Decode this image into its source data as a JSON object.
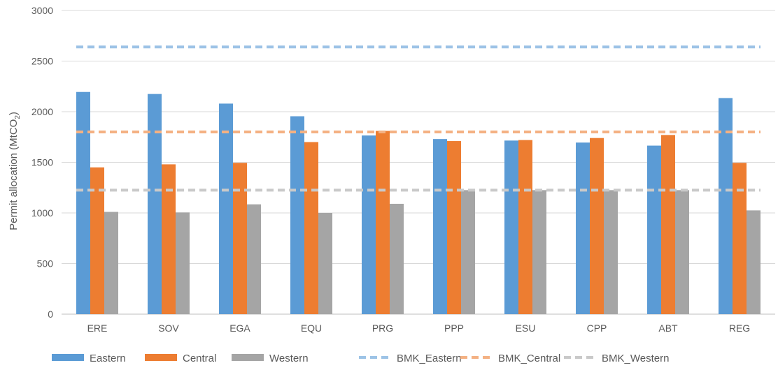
{
  "chart_data": {
    "type": "bar",
    "title": "",
    "xlabel": "",
    "ylabel": "Permit allocation (MtCO",
    "ylabel_sub": "2",
    "ylabel_end": ")",
    "ylim": [
      0,
      3000
    ],
    "yticks": [
      0,
      500,
      1000,
      1500,
      2000,
      2500,
      3000
    ],
    "ytick_labels": [
      "0",
      "500",
      "1000",
      "1500",
      "2000",
      "2500",
      "3000"
    ],
    "grid": true,
    "legend": "bottom",
    "categories": [
      "ERE",
      "SOV",
      "EGA",
      "EQU",
      "PRG",
      "PPP",
      "ESU",
      "CPP",
      "ABT",
      "REG"
    ],
    "series": [
      {
        "name": "Eastern",
        "color": "#5B9BD5",
        "values": [
          2195,
          2175,
          2080,
          1955,
          1765,
          1730,
          1715,
          1695,
          1665,
          2135
        ]
      },
      {
        "name": "Central",
        "color": "#ED7D31",
        "values": [
          1450,
          1480,
          1495,
          1700,
          1810,
          1710,
          1720,
          1740,
          1770,
          1495
        ]
      },
      {
        "name": "Western",
        "color": "#A5A5A5",
        "values": [
          1010,
          1005,
          1085,
          1000,
          1090,
          1225,
          1225,
          1225,
          1225,
          1025
        ]
      }
    ],
    "benchmarks": [
      {
        "name": "BMK_Eastern",
        "color": "#9DC3E6",
        "value": 2640
      },
      {
        "name": "BMK_Central",
        "color": "#F4B183",
        "value": 1800
      },
      {
        "name": "BMK_Western",
        "color": "#C9C9C9",
        "value": 1225
      }
    ]
  }
}
